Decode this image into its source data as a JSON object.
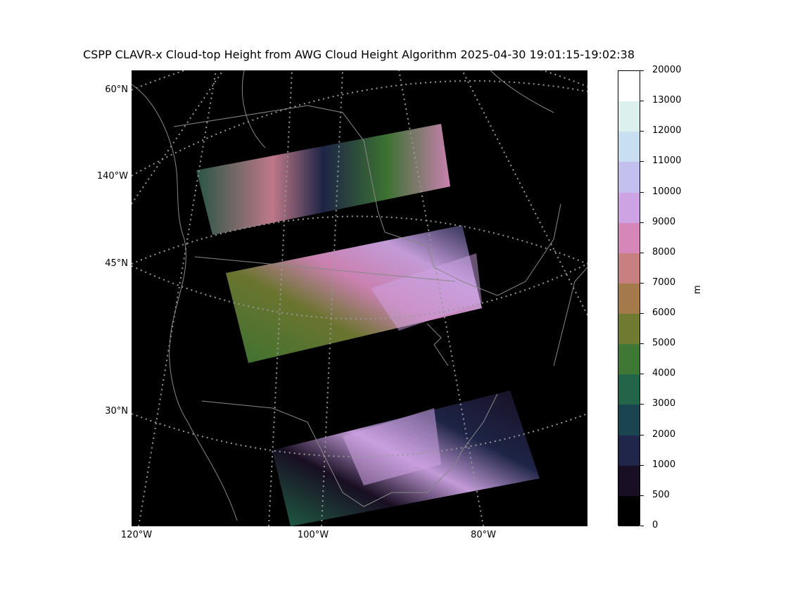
{
  "title": "CSPP CLAVR-x Cloud-top Height from AWG Cloud Height Algorithm 2025-04-30 19:01:15-19:02:38",
  "lat_labels": [
    "60°N",
    "140°W",
    "45°N",
    "30°N"
  ],
  "lon_labels": [
    "120°W",
    "100°W",
    "80°W"
  ],
  "colorbar": {
    "unit": "m",
    "ticks": [
      "20000",
      "13000",
      "12000",
      "11000",
      "10000",
      "9000",
      "8000",
      "7000",
      "6000",
      "5000",
      "4000",
      "3000",
      "2000",
      "1000",
      "500",
      "0"
    ],
    "colors": [
      "#ffffff",
      "#dcf1ee",
      "#c8dff2",
      "#c3c0f0",
      "#cda3e3",
      "#d487b8",
      "#c87f7f",
      "#a57a4a",
      "#707a31",
      "#3f7834",
      "#226549",
      "#1a4550",
      "#1f2649",
      "#190f24",
      "#000000"
    ]
  },
  "colors": {
    "coastline": "#888888",
    "graticule": "#999999",
    "background": "#000000"
  }
}
